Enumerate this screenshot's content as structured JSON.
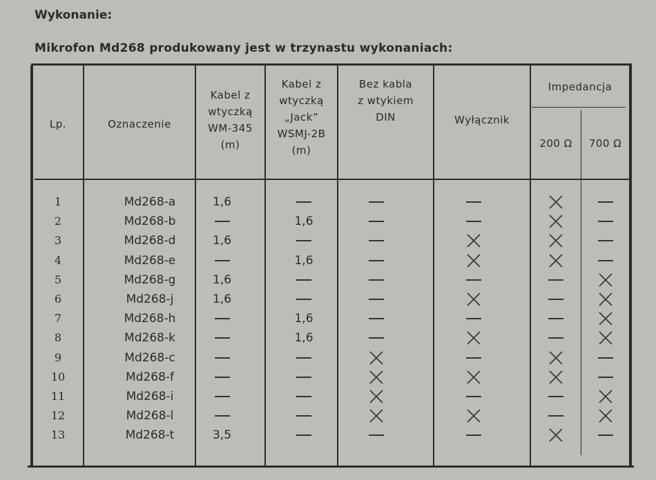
{
  "heading": "Wykonanie:",
  "subheading": "Mikrofon Md268 produkowany jest w trzynastu wykonaniach:",
  "table": {
    "headers": {
      "lp": "Lp.",
      "oznaczenie": "Oznaczenie",
      "kabel_wm": [
        "Kabel z",
        "wtyczką",
        "WM-345",
        "(m)"
      ],
      "kabel_jack": [
        "Kabel z",
        "wtyczką",
        "„Jack”",
        "WSMJ-2B",
        "(m)"
      ],
      "bez_kabla": [
        "Bez kabla",
        "z wtykiem",
        "DIN"
      ],
      "wylacznik": "Wyłącznik",
      "impedancja": "Impedancja",
      "imp_200": "200 Ω",
      "imp_700": "700 Ω"
    },
    "rows": [
      {
        "lp": "1",
        "name": "Md268-a",
        "wm": "1,6",
        "jack": "—",
        "din": "—",
        "sw": "—",
        "i200": "X",
        "i700": "—"
      },
      {
        "lp": "2",
        "name": "Md268-b",
        "wm": "—",
        "jack": "1,6",
        "din": "—",
        "sw": "—",
        "i200": "X",
        "i700": "—"
      },
      {
        "lp": "3",
        "name": "Md268-d",
        "wm": "1,6",
        "jack": "—",
        "din": "—",
        "sw": "X",
        "i200": "X",
        "i700": "—"
      },
      {
        "lp": "4",
        "name": "Md268-e",
        "wm": "—",
        "jack": "1,6",
        "din": "—",
        "sw": "X",
        "i200": "X",
        "i700": "—"
      },
      {
        "lp": "5",
        "name": "Md268-g",
        "wm": "1,6",
        "jack": "—",
        "din": "—",
        "sw": "—",
        "i200": "—",
        "i700": "X"
      },
      {
        "lp": "6",
        "name": "Md268-j",
        "wm": "1,6",
        "jack": "—",
        "din": "—",
        "sw": "X",
        "i200": "—",
        "i700": "X"
      },
      {
        "lp": "7",
        "name": "Md268-h",
        "wm": "—",
        "jack": "1,6",
        "din": "—",
        "sw": "—",
        "i200": "—",
        "i700": "X"
      },
      {
        "lp": "8",
        "name": "Md268-k",
        "wm": "—",
        "jack": "1,6",
        "din": "—",
        "sw": "X",
        "i200": "—",
        "i700": "X"
      },
      {
        "lp": "9",
        "name": "Md268-c",
        "wm": "—",
        "jack": "—",
        "din": "X",
        "sw": "—",
        "i200": "X",
        "i700": "—"
      },
      {
        "lp": "10",
        "name": "Md268-f",
        "wm": "—",
        "jack": "—",
        "din": "X",
        "sw": "X",
        "i200": "X",
        "i700": "—"
      },
      {
        "lp": "11",
        "name": "Md268-i",
        "wm": "—",
        "jack": "—",
        "din": "X",
        "sw": "—",
        "i200": "—",
        "i700": "X"
      },
      {
        "lp": "12",
        "name": "Md268-l",
        "wm": "—",
        "jack": "—",
        "din": "X",
        "sw": "X",
        "i200": "—",
        "i700": "X"
      },
      {
        "lp": "13",
        "name": "Md268-t",
        "wm": "3,5",
        "jack": "—",
        "din": "—",
        "sw": "—",
        "i200": "X",
        "i700": "—"
      }
    ]
  }
}
